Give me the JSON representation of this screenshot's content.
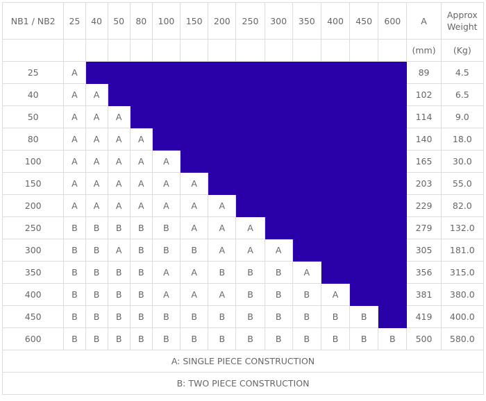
{
  "header": {
    "corner": "NB1 / NB2",
    "nb2": [
      "25",
      "40",
      "50",
      "80",
      "100",
      "150",
      "200",
      "250",
      "300",
      "350",
      "400",
      "450",
      "600"
    ],
    "a_label": "A",
    "weight_label": "Approx Weight",
    "a_unit": "(mm)",
    "weight_unit": "(Kg)"
  },
  "rows": [
    {
      "nb1": "25",
      "codes": [
        "A"
      ],
      "a": "89",
      "weight": "4.5"
    },
    {
      "nb1": "40",
      "codes": [
        "A",
        "A"
      ],
      "a": "102",
      "weight": "6.5"
    },
    {
      "nb1": "50",
      "codes": [
        "A",
        "A",
        "A"
      ],
      "a": "114",
      "weight": "9.0"
    },
    {
      "nb1": "80",
      "codes": [
        "A",
        "A",
        "A",
        "A"
      ],
      "a": "140",
      "weight": "18.0"
    },
    {
      "nb1": "100",
      "codes": [
        "A",
        "A",
        "A",
        "A",
        "A"
      ],
      "a": "165",
      "weight": "30.0"
    },
    {
      "nb1": "150",
      "codes": [
        "A",
        "A",
        "A",
        "A",
        "A",
        "A"
      ],
      "a": "203",
      "weight": "55.0"
    },
    {
      "nb1": "200",
      "codes": [
        "A",
        "A",
        "A",
        "A",
        "A",
        "A",
        "A"
      ],
      "a": "229",
      "weight": "82.0"
    },
    {
      "nb1": "250",
      "codes": [
        "B",
        "B",
        "B",
        "B",
        "B",
        "A",
        "A",
        "A"
      ],
      "a": "279",
      "weight": "132.0"
    },
    {
      "nb1": "300",
      "codes": [
        "B",
        "B",
        "A",
        "B",
        "B",
        "B",
        "A",
        "A",
        "A"
      ],
      "a": "305",
      "weight": "181.0"
    },
    {
      "nb1": "350",
      "codes": [
        "B",
        "B",
        "B",
        "B",
        "A",
        "A",
        "B",
        "B",
        "B",
        "A"
      ],
      "a": "356",
      "weight": "315.0"
    },
    {
      "nb1": "400",
      "codes": [
        "B",
        "B",
        "B",
        "B",
        "A",
        "A",
        "A",
        "B",
        "B",
        "B",
        "A"
      ],
      "a": "381",
      "weight": "380.0"
    },
    {
      "nb1": "450",
      "codes": [
        "B",
        "B",
        "B",
        "B",
        "B",
        "B",
        "B",
        "B",
        "B",
        "B",
        "B",
        "B"
      ],
      "a": "419",
      "weight": "400.0"
    },
    {
      "nb1": "600",
      "codes": [
        "B",
        "B",
        "B",
        "B",
        "B",
        "B",
        "B",
        "B",
        "B",
        "B",
        "B",
        "B",
        "B"
      ],
      "a": "500",
      "weight": "580.0"
    }
  ],
  "notes": {
    "a": "A: SINGLE PIECE CONSTRUCTION",
    "b": "B: TWO PIECE CONSTRUCTION"
  },
  "colors": {
    "fill": "#2a00a8",
    "text": "#666666",
    "border": "#dcdcdc"
  }
}
